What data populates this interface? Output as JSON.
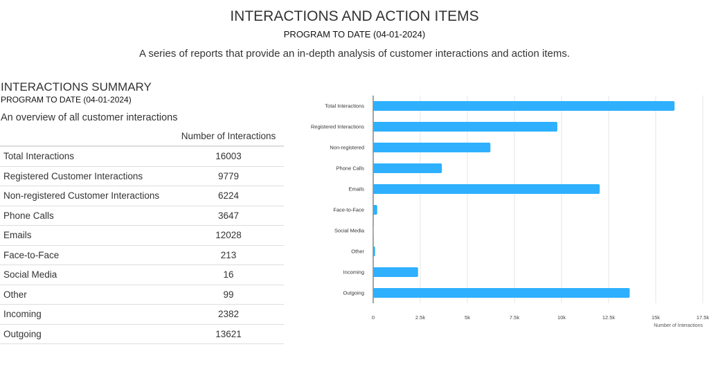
{
  "header": {
    "title": "INTERACTIONS AND ACTION ITEMS",
    "subtitle": "PROGRAM TO DATE (04-01-2024)",
    "description": "A series of reports that provide an in-depth analysis of customer interactions and action items."
  },
  "summary": {
    "title": "INTERACTIONS SUMMARY",
    "subtitle": "PROGRAM TO DATE (04-01-2024)",
    "description": "An overview of all customer interactions",
    "column_header": "Number of Interactions",
    "rows": [
      {
        "label": "Total Interactions",
        "value": "16003"
      },
      {
        "label": "Registered Customer Interactions",
        "value": "9779"
      },
      {
        "label": "Non-registered Customer Interactions",
        "value": "6224"
      },
      {
        "label": "Phone Calls",
        "value": "3647"
      },
      {
        "label": "Emails",
        "value": "12028"
      },
      {
        "label": "Face-to-Face",
        "value": "213"
      },
      {
        "label": "Social Media",
        "value": "16"
      },
      {
        "label": "Other",
        "value": "99"
      },
      {
        "label": "Incoming",
        "value": "2382"
      },
      {
        "label": "Outgoing",
        "value": "13621"
      }
    ]
  },
  "chart_data": {
    "type": "bar",
    "orientation": "horizontal",
    "categories": [
      "Total Interactions",
      "Registered Interactions",
      "Non-registered",
      "Phone Calls",
      "Emails",
      "Face-to-Face",
      "Social Media",
      "Other",
      "Incoming",
      "Outgoing"
    ],
    "values": [
      16003,
      9779,
      6224,
      3647,
      12028,
      213,
      16,
      99,
      2382,
      13621
    ],
    "xlabel": "Number of Interactions",
    "xlim": [
      0,
      17500
    ],
    "ticks": [
      0,
      2500,
      5000,
      7500,
      10000,
      12500,
      15000,
      17500
    ],
    "tick_labels": [
      "0",
      "2.5k",
      "5k",
      "7.5k",
      "10k",
      "12.5k",
      "15k",
      "17.5k"
    ],
    "grid": true,
    "color": "#2eb0ff"
  }
}
